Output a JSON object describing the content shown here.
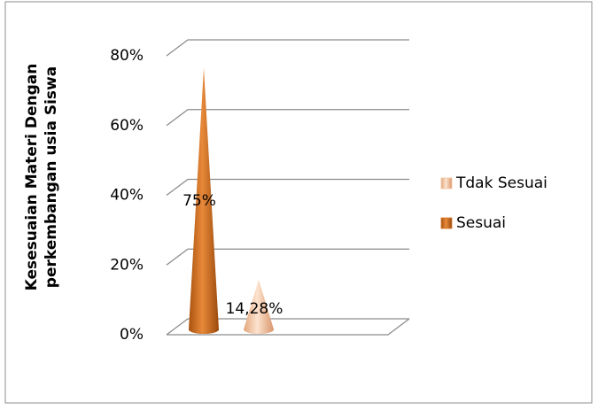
{
  "chart_data": {
    "type": "cone",
    "ylabel": [
      "Kesesuaian Materi Dengan",
      "perkembangan usia Siswa"
    ],
    "categories": [
      null
    ],
    "series": [
      {
        "name": "Sesuai",
        "color": "#d9782b",
        "values": [
          75
        ],
        "value_labels": [
          "75%"
        ]
      },
      {
        "name": "Tdak Sesuai",
        "color": "#f4c6a2",
        "values": [
          14.28
        ],
        "value_labels": [
          "14,28%"
        ]
      }
    ],
    "legend_order": [
      1,
      0
    ],
    "ylim": [
      0,
      80
    ],
    "yticks": [
      {
        "value": 0,
        "label": "0%"
      },
      {
        "value": 20,
        "label": "20%"
      },
      {
        "value": 40,
        "label": "40%"
      },
      {
        "value": 60,
        "label": "60%"
      },
      {
        "value": 80,
        "label": "80%"
      }
    ],
    "grid": true,
    "legend": "right"
  }
}
